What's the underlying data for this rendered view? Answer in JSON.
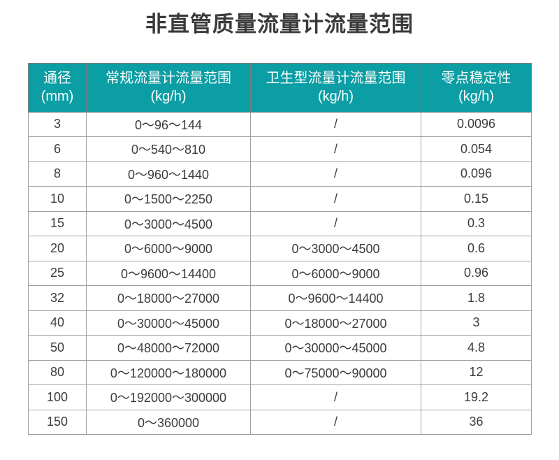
{
  "page": {
    "title": "非直管质量流量计流量范围"
  },
  "colors": {
    "header_bg": "#0b9ea4",
    "header_text": "#ffffff",
    "cell_text": "#3c3c3c",
    "title_text": "#3a3a3a",
    "border_inner": "#a0a0a0",
    "border_outer": "#7d7d7d",
    "page_bg": "#ffffff"
  },
  "table": {
    "columns": [
      {
        "label": "通径",
        "unit": "(mm)"
      },
      {
        "label": "常规流量计流量范围",
        "unit": "(kg/h)"
      },
      {
        "label": "卫生型流量计流量范围",
        "unit": "(kg/h)"
      },
      {
        "label": "零点稳定性",
        "unit": "(kg/h)"
      }
    ],
    "rows": [
      {
        "diameter": "3",
        "standard_range": "0～96～144",
        "sanitary_range": "/",
        "zero_stability": "0.0096"
      },
      {
        "diameter": "6",
        "standard_range": "0～540～810",
        "sanitary_range": "/",
        "zero_stability": "0.054"
      },
      {
        "diameter": "8",
        "standard_range": "0～960～1440",
        "sanitary_range": "/",
        "zero_stability": "0.096"
      },
      {
        "diameter": "10",
        "standard_range": "0～1500～2250",
        "sanitary_range": "/",
        "zero_stability": "0.15"
      },
      {
        "diameter": "15",
        "standard_range": "0～3000～4500",
        "sanitary_range": "/",
        "zero_stability": "0.3"
      },
      {
        "diameter": "20",
        "standard_range": "0～6000～9000",
        "sanitary_range": "0～3000～4500",
        "zero_stability": "0.6"
      },
      {
        "diameter": "25",
        "standard_range": "0～9600～14400",
        "sanitary_range": "0～6000～9000",
        "zero_stability": "0.96"
      },
      {
        "diameter": "32",
        "standard_range": "0～18000～27000",
        "sanitary_range": "0～9600～14400",
        "zero_stability": "1.8"
      },
      {
        "diameter": "40",
        "standard_range": "0～30000～45000",
        "sanitary_range": "0～18000～27000",
        "zero_stability": "3"
      },
      {
        "diameter": "50",
        "standard_range": "0～48000～72000",
        "sanitary_range": "0～30000～45000",
        "zero_stability": "4.8"
      },
      {
        "diameter": "80",
        "standard_range": "0～120000～180000",
        "sanitary_range": "0～75000～90000",
        "zero_stability": "12"
      },
      {
        "diameter": "100",
        "standard_range": "0～192000～300000",
        "sanitary_range": "/",
        "zero_stability": "19.2"
      },
      {
        "diameter": "150",
        "standard_range": "0～360000",
        "sanitary_range": "/",
        "zero_stability": "36"
      }
    ]
  }
}
